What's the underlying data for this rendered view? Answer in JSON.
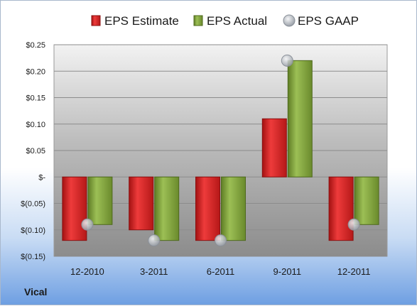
{
  "chart_data": {
    "type": "bar",
    "categories": [
      "12-2010",
      "3-2011",
      "6-2011",
      "9-2011",
      "12-2011"
    ],
    "series": [
      {
        "name": "EPS Estimate",
        "kind": "bar",
        "color": "#d42a2a",
        "values": [
          -0.12,
          -0.1,
          -0.12,
          0.11,
          -0.12
        ]
      },
      {
        "name": "EPS Actual",
        "kind": "bar",
        "color": "#7fa03b",
        "values": [
          -0.09,
          -0.12,
          -0.12,
          0.22,
          -0.09
        ]
      },
      {
        "name": "EPS GAAP",
        "kind": "marker",
        "color": "#b9bec6",
        "values": [
          -0.09,
          -0.12,
          -0.12,
          0.22,
          -0.09
        ]
      }
    ],
    "ylim": [
      -0.15,
      0.25
    ],
    "yticks": [
      0.25,
      0.2,
      0.15,
      0.1,
      0.05,
      0,
      -0.05,
      -0.1,
      -0.15
    ],
    "ytick_labels": [
      "$0.25",
      "$0.20",
      "$0.15",
      "$0.10",
      "$0.05",
      "$-",
      "$(0.05)",
      "$(0.10)",
      "$(0.15)"
    ],
    "grid": true,
    "legend_position": "top"
  },
  "company_label": "Vical"
}
